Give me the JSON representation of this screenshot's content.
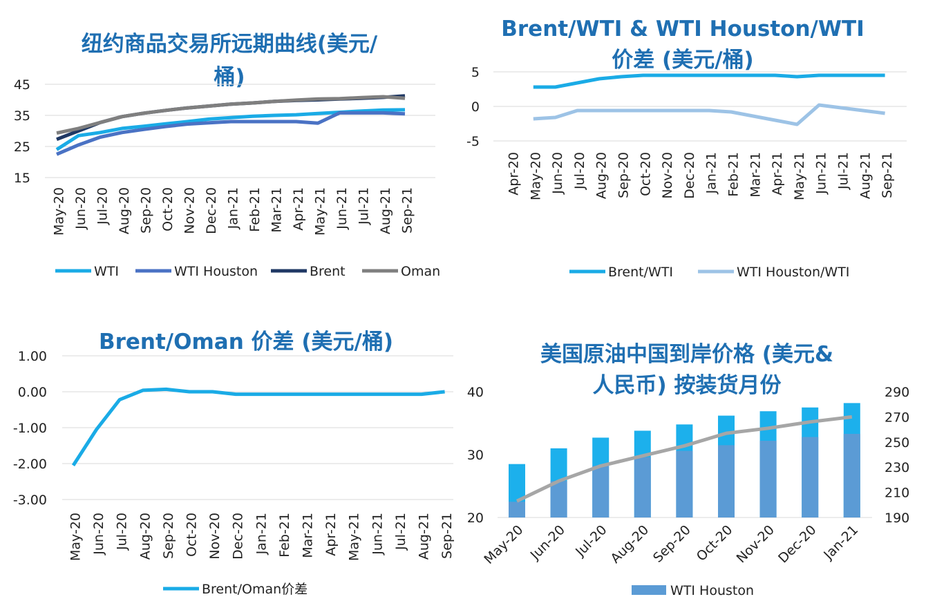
{
  "colors": {
    "wti": "#1aabe6",
    "wti_houston": "#4a72c4",
    "brent": "#1f3864",
    "oman": "#7f7f7f",
    "brent_wti": "#1aabe6",
    "houston_wti": "#9dc3e6",
    "brent_oman": "#1aabe6",
    "bar_bottom": "#5b9bd5",
    "bar_top": "#1cb0ec",
    "price_line": "#a6a6a6",
    "title": "#1f6fb2"
  },
  "chart_data": [
    {
      "id": "c1",
      "type": "line",
      "title_lines": [
        "纽约商品交易所远期曲线(美元/",
        "桶)"
      ],
      "categories": [
        "May-20",
        "Jun-20",
        "Jul-20",
        "Aug-20",
        "Sep-20",
        "Oct-20",
        "Nov-20",
        "Dec-20",
        "Jan-21",
        "Feb-21",
        "Mar-21",
        "Apr-21",
        "May-21",
        "Jun-21",
        "Jul-21",
        "Aug-21",
        "Sep-21"
      ],
      "x_tick_labels": [
        "May-20",
        "Jun-20",
        "Jul-20",
        "Aug-20",
        "Sep-20",
        "Oct-20",
        "Nov-20",
        "Dec-20",
        "Jan-21",
        "Feb-21",
        "Mar-21",
        "Apr-21",
        "May-21",
        "Jun-21",
        "Jul-21",
        "Aug-21",
        "Sep-21"
      ],
      "y_ticks": [
        "45",
        "35",
        "25",
        "15"
      ],
      "ylim": [
        15,
        45
      ],
      "series": [
        {
          "name": "WTI",
          "values": [
            24,
            28.5,
            29.5,
            30.8,
            31.5,
            32.3,
            33,
            33.8,
            34.3,
            34.7,
            35,
            35.2,
            35.6,
            36,
            36.4,
            36.7,
            36.8
          ]
        },
        {
          "name": "WTI Houston",
          "values": [
            22.5,
            25.5,
            28,
            29.5,
            30.5,
            31.4,
            32.2,
            32.6,
            33,
            33,
            33,
            33,
            32.5,
            35.8,
            35.8,
            35.8,
            35.5
          ]
        },
        {
          "name": "Brent",
          "values": [
            27.3,
            30,
            32.7,
            34.6,
            35.7,
            36.6,
            37.4,
            38,
            38.6,
            39,
            39.5,
            39.8,
            40,
            40.3,
            40.5,
            40.8,
            41.3
          ]
        },
        {
          "name": "Oman",
          "values": [
            29.3,
            30.8,
            32.7,
            34.6,
            35.7,
            36.6,
            37.4,
            38,
            38.6,
            39,
            39.5,
            39.9,
            40.3,
            40.4,
            40.7,
            41,
            40.5
          ]
        }
      ],
      "legend": [
        "WTI",
        "WTI Houston",
        "Brent",
        "Oman"
      ],
      "legend_position": "bottom"
    },
    {
      "id": "c2",
      "type": "line",
      "title_lines": [
        "Brent/WTI & WTI Houston/WTI",
        "价差 (美元/桶)"
      ],
      "categories": [
        "May-20",
        "Jun-20",
        "Jul-20",
        "Aug-20",
        "Sep-20",
        "Oct-20",
        "Nov-20",
        "Dec-20",
        "Jan-21",
        "Feb-21",
        "Mar-21",
        "Apr-21",
        "May-21",
        "Jun-21",
        "Jul-21",
        "Aug-21",
        "Sep-21"
      ],
      "x_tick_labels": [
        "Apr-20",
        "May-20",
        "Jun-20",
        "Jul-20",
        "Aug-20",
        "Sep-20",
        "Oct-20",
        "Nov-20",
        "Dec-20",
        "Jan-21",
        "Feb-21",
        "Mar-21",
        "Apr-21",
        "May-21",
        "Jun-21",
        "Jul-21",
        "Aug-21",
        "Sep-21"
      ],
      "y_ticks": [
        "5",
        "0",
        "-5"
      ],
      "ylim": [
        -5,
        5
      ],
      "series": [
        {
          "name": "Brent/WTI",
          "values": [
            2.8,
            2.8,
            3.4,
            4.0,
            4.3,
            4.5,
            4.5,
            4.5,
            4.5,
            4.5,
            4.5,
            4.5,
            4.3,
            4.5,
            4.5,
            4.5,
            4.5
          ]
        },
        {
          "name": "WTI Houston/WTI",
          "values": [
            -1.8,
            -1.6,
            -0.6,
            -0.6,
            -0.6,
            -0.6,
            -0.6,
            -0.6,
            -0.6,
            -0.8,
            -1.4,
            -2.0,
            -2.6,
            0.2,
            -0.2,
            -0.6,
            -1.0
          ]
        }
      ],
      "legend": [
        "Brent/WTI",
        "WTI Houston/WTI"
      ],
      "legend_position": "bottom"
    },
    {
      "id": "c3",
      "type": "line",
      "title_lines": [
        "Brent/Oman 价差 (美元/桶)"
      ],
      "categories": [
        "May-20",
        "Jun-20",
        "Jul-20",
        "Aug-20",
        "Sep-20",
        "Oct-20",
        "Nov-20",
        "Dec-20",
        "Jan-21",
        "Feb-21",
        "Mar-21",
        "Apr-21",
        "May-21",
        "Jun-21",
        "Jul-21",
        "Aug-21",
        "Sep-21"
      ],
      "x_tick_labels": [
        "May-20",
        "Jun-20",
        "Jul-20",
        "Aug-20",
        "Sep-20",
        "Oct-20",
        "Nov-20",
        "Dec-20",
        "Jan-21",
        "Feb-21",
        "Mar-21",
        "Apr-21",
        "May-21",
        "Jun-21",
        "Jul-21",
        "Aug-21",
        "Sep-21"
      ],
      "y_ticks": [
        "1.00",
        "0.00",
        "-1.00",
        "-2.00",
        "-3.00"
      ],
      "ylim": [
        -3,
        1
      ],
      "series": [
        {
          "name": "Brent/Oman价差",
          "values": [
            -2.05,
            -1.05,
            -0.22,
            0.04,
            0.07,
            0.0,
            0.0,
            -0.07,
            -0.07,
            -0.07,
            -0.07,
            -0.07,
            -0.07,
            -0.07,
            -0.07,
            -0.07,
            0.0
          ]
        }
      ],
      "legend": [
        "Brent/Oman价差"
      ],
      "legend_position": "bottom"
    },
    {
      "id": "c4",
      "type": "bar",
      "title_lines": [
        "美国原油中国到岸价格 (美元&",
        "人民币) 按装货月份"
      ],
      "categories": [
        "May-20",
        "Jun-20",
        "Jul-20",
        "Aug-20",
        "Sep-20",
        "Oct-20",
        "Nov-20",
        "Dec-20",
        "Jan-21"
      ],
      "y_ticks_left": [
        "40",
        "30",
        "20"
      ],
      "ylim_left": [
        20,
        40
      ],
      "y_ticks_right": [
        "290",
        "270",
        "250",
        "230",
        "210",
        "190"
      ],
      "ylim_right": [
        190,
        290
      ],
      "series": [
        {
          "name": "WTI Houston",
          "values": [
            22.5,
            25.8,
            28.2,
            29.6,
            30.6,
            31.5,
            32.2,
            32.8,
            33.3
          ]
        },
        {
          "values": [
            28.5,
            31.0,
            32.7,
            33.8,
            34.8,
            36.2,
            36.9,
            37.5,
            38.2
          ]
        },
        {
          "axis": "right",
          "values": [
            203,
            219,
            231,
            239,
            247,
            257,
            261,
            266,
            270
          ]
        }
      ],
      "legend": [
        "WTI Houston"
      ],
      "legend_position": "bottom"
    }
  ]
}
